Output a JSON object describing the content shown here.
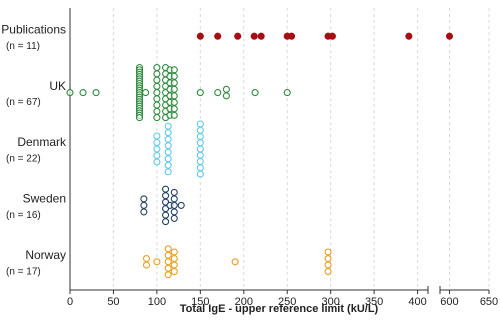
{
  "chart_data": {
    "type": "dotplot",
    "x_label": "Total IgE - upper reference limit (kU/L)",
    "xlim": [
      0,
      650
    ],
    "x_break": [
      412,
      588
    ],
    "xticks": [
      0,
      50,
      100,
      150,
      200,
      250,
      300,
      350,
      400,
      600,
      650
    ],
    "grid": true,
    "series": [
      {
        "name": "Publications",
        "note": "(n = 11)",
        "color": "#a50f15",
        "filled": true,
        "values": [
          150,
          170,
          193,
          212,
          220,
          250,
          255,
          297,
          302,
          390,
          600
        ]
      },
      {
        "name": "UK",
        "note": "(n = 67)",
        "color": "#2e8b3e",
        "filled": false,
        "values": [
          0,
          15,
          30,
          80,
          80,
          80,
          80,
          80,
          80,
          80,
          80,
          80,
          80,
          80,
          80,
          80,
          80,
          80,
          80,
          80,
          80,
          80,
          80,
          80,
          80,
          80,
          87,
          100,
          100,
          100,
          100,
          100,
          100,
          100,
          100,
          100,
          110,
          110,
          110,
          110,
          110,
          110,
          110,
          110,
          110,
          115,
          115,
          115,
          115,
          115,
          115,
          115,
          115,
          120,
          120,
          120,
          120,
          120,
          120,
          120,
          120,
          150,
          170,
          180,
          180,
          213,
          250
        ]
      },
      {
        "name": "Denmark",
        "note": "(n = 22)",
        "color": "#5bc8e8",
        "filled": false,
        "values": [
          100,
          100,
          100,
          100,
          100,
          113,
          113,
          113,
          113,
          113,
          113,
          113,
          113,
          150,
          150,
          150,
          150,
          150,
          150,
          150,
          150,
          150
        ]
      },
      {
        "name": "Sweden",
        "note": "(n = 16)",
        "color": "#1f3f66",
        "filled": false,
        "values": [
          85,
          85,
          85,
          110,
          110,
          110,
          110,
          110,
          110,
          115,
          120,
          120,
          120,
          120,
          120,
          128
        ]
      },
      {
        "name": "Norway",
        "note": "(n = 17)",
        "color": "#e8a020",
        "filled": false,
        "values": [
          88,
          88,
          100,
          113,
          113,
          113,
          113,
          113,
          120,
          120,
          120,
          120,
          190,
          297,
          297,
          297,
          297
        ]
      }
    ]
  }
}
